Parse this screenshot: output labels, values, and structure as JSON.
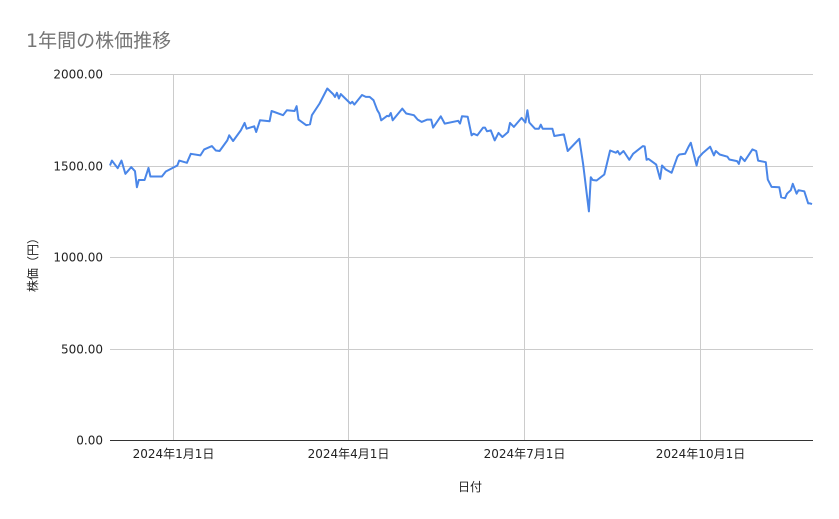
{
  "chart_data": {
    "type": "line",
    "title": "1年間の株価推移",
    "xlabel": "日付",
    "ylabel": "株価（円）",
    "ylim": [
      0,
      2000
    ],
    "xlim": [
      "2023-11-29",
      "2024-11-28"
    ],
    "grid": true,
    "legend": "none",
    "y_ticks": [
      "0.00",
      "500.00",
      "1000.00",
      "1500.00",
      "2000.00"
    ],
    "y_tick_values": [
      0,
      500,
      1000,
      1500,
      2000
    ],
    "x_ticks": [
      "2024年1月1日",
      "2024年4月1日",
      "2024年7月1日",
      "2024年10月1日"
    ],
    "x_tick_dates": [
      "2024-01-01",
      "2024-04-01",
      "2024-07-01",
      "2024-10-01"
    ],
    "line_color": "#4a86e8",
    "series": [
      {
        "x": [
          "2023-11-29",
          "2023-11-30",
          "2023-12-03",
          "2023-12-05",
          "2023-12-07",
          "2023-12-10",
          "2023-12-12",
          "2023-12-13",
          "2023-12-14",
          "2023-12-17",
          "2023-12-19",
          "2023-12-20",
          "2023-12-26",
          "2023-12-28",
          "2024-01-03",
          "2024-01-04",
          "2024-01-08",
          "2024-01-10",
          "2024-01-15",
          "2024-01-17",
          "2024-01-21",
          "2024-01-23",
          "2024-01-25",
          "2024-01-29",
          "2024-01-30",
          "2024-02-01",
          "2024-02-05",
          "2024-02-07",
          "2024-02-08",
          "2024-02-12",
          "2024-02-13",
          "2024-02-15",
          "2024-02-20",
          "2024-02-21",
          "2024-02-27",
          "2024-02-29",
          "2024-03-04",
          "2024-03-05",
          "2024-03-06",
          "2024-03-10",
          "2024-03-12",
          "2024-03-13",
          "2024-03-17",
          "2024-03-21",
          "2024-03-24",
          "2024-03-25",
          "2024-03-26",
          "2024-03-27",
          "2024-03-28",
          "2024-04-02",
          "2024-04-03",
          "2024-04-04",
          "2024-04-08",
          "2024-04-10",
          "2024-04-12",
          "2024-04-14",
          "2024-04-16",
          "2024-04-17",
          "2024-04-18",
          "2024-04-21",
          "2024-04-22",
          "2024-04-23",
          "2024-04-24",
          "2024-04-29",
          "2024-05-01",
          "2024-05-05",
          "2024-05-07",
          "2024-05-09",
          "2024-05-12",
          "2024-05-14",
          "2024-05-15",
          "2024-05-19",
          "2024-05-21",
          "2024-05-28",
          "2024-05-29",
          "2024-05-30",
          "2024-06-02",
          "2024-06-04",
          "2024-06-05",
          "2024-06-07",
          "2024-06-10",
          "2024-06-11",
          "2024-06-12",
          "2024-06-14",
          "2024-06-16",
          "2024-06-18",
          "2024-06-20",
          "2024-06-23",
          "2024-06-24",
          "2024-06-26",
          "2024-06-30",
          "2024-07-02",
          "2024-07-03",
          "2024-07-04",
          "2024-07-07",
          "2024-07-09",
          "2024-07-10",
          "2024-07-11",
          "2024-07-16",
          "2024-07-17",
          "2024-07-22",
          "2024-07-24",
          "2024-07-30",
          "2024-08-01",
          "2024-08-04",
          "2024-08-05",
          "2024-08-06",
          "2024-08-08",
          "2024-08-12",
          "2024-08-15",
          "2024-08-18",
          "2024-08-19",
          "2024-08-20",
          "2024-08-22",
          "2024-08-25",
          "2024-08-27",
          "2024-09-01",
          "2024-09-02",
          "2024-09-03",
          "2024-09-04",
          "2024-09-08",
          "2024-09-10",
          "2024-09-11",
          "2024-09-13",
          "2024-09-16",
          "2024-09-19",
          "2024-09-20",
          "2024-09-23",
          "2024-09-25",
          "2024-09-26",
          "2024-09-29",
          "2024-09-30",
          "2024-10-02",
          "2024-10-06",
          "2024-10-08",
          "2024-10-09",
          "2024-10-11",
          "2024-10-15",
          "2024-10-16",
          "2024-10-20",
          "2024-10-21",
          "2024-10-22",
          "2024-10-24",
          "2024-10-28",
          "2024-10-30",
          "2024-10-31",
          "2024-11-04",
          "2024-11-05",
          "2024-11-07",
          "2024-11-11",
          "2024-11-12",
          "2024-11-14",
          "2024-11-15",
          "2024-11-17",
          "2024-11-18",
          "2024-11-20",
          "2024-11-21",
          "2024-11-24",
          "2024-11-26",
          "2024-11-27",
          "2024-11-28"
        ],
        "y": [
          1500,
          1527,
          1485,
          1527,
          1454,
          1491,
          1469,
          1381,
          1421,
          1421,
          1487,
          1440,
          1440,
          1467,
          1500,
          1527,
          1515,
          1564,
          1555,
          1588,
          1606,
          1582,
          1579,
          1637,
          1665,
          1634,
          1692,
          1733,
          1701,
          1714,
          1683,
          1747,
          1742,
          1798,
          1775,
          1802,
          1798,
          1824,
          1751,
          1720,
          1725,
          1775,
          1839,
          1921,
          1890,
          1875,
          1897,
          1866,
          1890,
          1839,
          1848,
          1833,
          1885,
          1875,
          1875,
          1857,
          1802,
          1784,
          1747,
          1771,
          1769,
          1787,
          1747,
          1811,
          1784,
          1775,
          1751,
          1738,
          1751,
          1751,
          1707,
          1769,
          1729,
          1744,
          1729,
          1769,
          1766,
          1665,
          1674,
          1665,
          1707,
          1707,
          1687,
          1692,
          1637,
          1678,
          1656,
          1683,
          1733,
          1711,
          1760,
          1735,
          1802,
          1735,
          1701,
          1701,
          1723,
          1701,
          1701,
          1661,
          1670,
          1579,
          1646,
          1509,
          1249,
          1436,
          1421,
          1418,
          1451,
          1582,
          1570,
          1579,
          1560,
          1579,
          1531,
          1564,
          1606,
          1604,
          1531,
          1536,
          1505,
          1427,
          1500,
          1478,
          1460,
          1548,
          1560,
          1564,
          1606,
          1624,
          1500,
          1542,
          1566,
          1603,
          1555,
          1579,
          1560,
          1548,
          1533,
          1524,
          1509,
          1548,
          1524,
          1588,
          1579,
          1527,
          1518,
          1423,
          1383,
          1381,
          1326,
          1322,
          1346,
          1365,
          1400,
          1346,
          1365,
          1359,
          1293,
          1293,
          1289
        ]
      }
    ]
  }
}
